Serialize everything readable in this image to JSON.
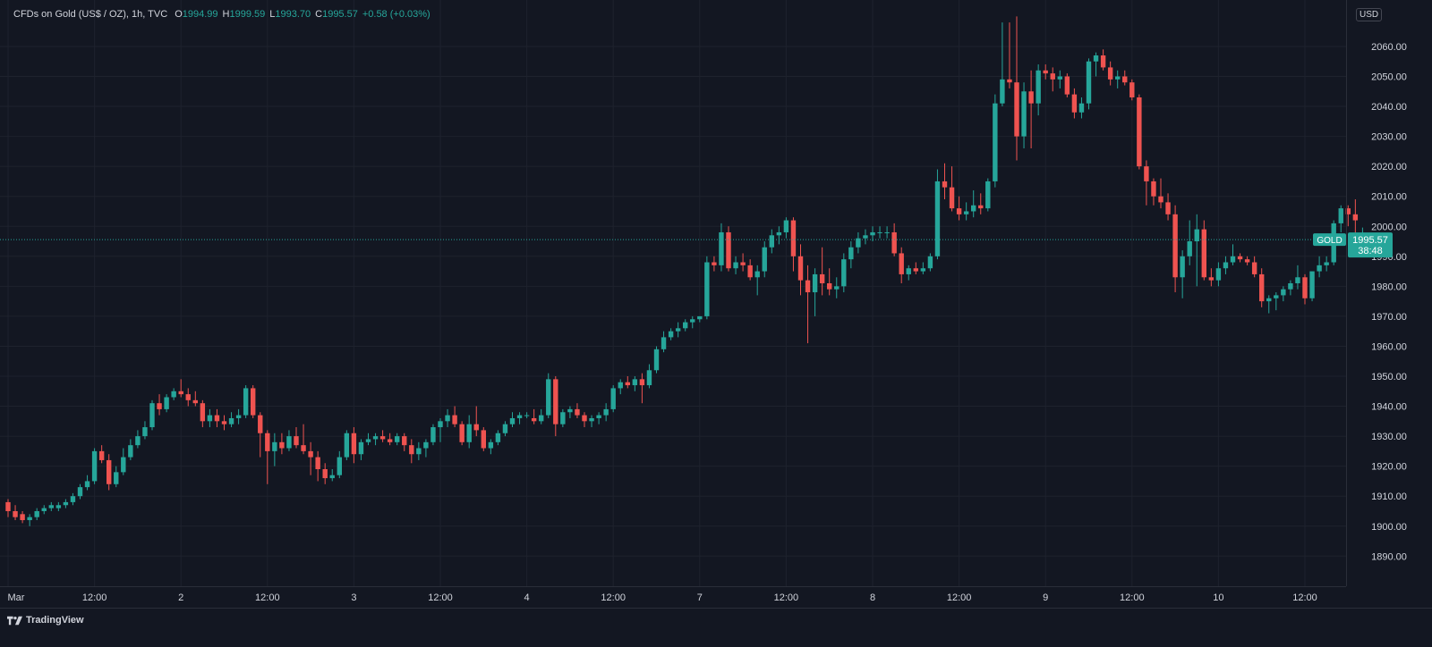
{
  "legend": {
    "symbol": "CFDs on Gold (US$ / OZ), 1h, TVC",
    "o_label": "O",
    "o_value": "1994.99",
    "h_label": "H",
    "h_value": "1999.59",
    "l_label": "L",
    "l_value": "1993.70",
    "c_label": "C",
    "c_value": "1995.57",
    "change": "+0.58 (+0.03%)"
  },
  "currency_button": "USD",
  "price_tag": {
    "ticker": "GOLD",
    "price": "1995.57",
    "countdown": "38:48"
  },
  "footer": {
    "brand": "TradingView",
    "logo_icon": "tradingview-logo-icon"
  },
  "colors": {
    "background": "#131722",
    "grid": "#1e222d",
    "up": "#26a69a",
    "down": "#ef5350",
    "text": "#d1d4dc",
    "axis_border": "#2a2e39"
  },
  "chart_data": {
    "type": "candlestick",
    "title": "CFDs on Gold (US$ / OZ), 1h, TVC",
    "ylabel": "USD",
    "y_axis_side": "right",
    "ylim": [
      1880,
      2070
    ],
    "y_ticks": [
      "1890.00",
      "1900.00",
      "1910.00",
      "1920.00",
      "1930.00",
      "1940.00",
      "1950.00",
      "1960.00",
      "1970.00",
      "1980.00",
      "1990.00",
      "2000.00",
      "2010.00",
      "2020.00",
      "2030.00",
      "2040.00",
      "2050.00",
      "2060.00"
    ],
    "x_ticks": [
      {
        "label": "Mar",
        "bar": 0
      },
      {
        "label": "12:00",
        "bar": 12
      },
      {
        "label": "2",
        "bar": 24
      },
      {
        "label": "12:00",
        "bar": 36
      },
      {
        "label": "3",
        "bar": 48
      },
      {
        "label": "12:00",
        "bar": 60
      },
      {
        "label": "4",
        "bar": 72
      },
      {
        "label": "12:00",
        "bar": 84
      },
      {
        "label": "7",
        "bar": 96
      },
      {
        "label": "12:00",
        "bar": 108
      },
      {
        "label": "8",
        "bar": 120
      },
      {
        "label": "12:00",
        "bar": 132
      },
      {
        "label": "9",
        "bar": 144
      },
      {
        "label": "12:00",
        "bar": 156
      },
      {
        "label": "10",
        "bar": 168
      },
      {
        "label": "12:00",
        "bar": 180
      }
    ],
    "current_price": 1995.57,
    "grid": true,
    "candles_ohlc": [
      [
        1908,
        1909,
        1903,
        1905
      ],
      [
        1905,
        1907,
        1902,
        1903
      ],
      [
        1904,
        1905,
        1901,
        1902
      ],
      [
        1902,
        1904,
        1900,
        1903
      ],
      [
        1903,
        1906,
        1902,
        1905
      ],
      [
        1905,
        1907,
        1904,
        1906
      ],
      [
        1906,
        1908,
        1905,
        1907
      ],
      [
        1906,
        1908,
        1905,
        1907
      ],
      [
        1907,
        1909,
        1906,
        1908
      ],
      [
        1908,
        1911,
        1907,
        1910
      ],
      [
        1910,
        1914,
        1909,
        1913
      ],
      [
        1913,
        1917,
        1912,
        1915
      ],
      [
        1915,
        1926,
        1914,
        1925
      ],
      [
        1925,
        1927,
        1921,
        1922
      ],
      [
        1922,
        1924,
        1912,
        1914
      ],
      [
        1914,
        1920,
        1913,
        1918
      ],
      [
        1918,
        1926,
        1917,
        1923
      ],
      [
        1923,
        1929,
        1922,
        1927
      ],
      [
        1927,
        1932,
        1926,
        1930
      ],
      [
        1930,
        1935,
        1929,
        1933
      ],
      [
        1933,
        1942,
        1932,
        1941
      ],
      [
        1941,
        1944,
        1937,
        1939
      ],
      [
        1939,
        1944,
        1938,
        1943
      ],
      [
        1943,
        1946,
        1942,
        1945
      ],
      [
        1945,
        1949,
        1943,
        1944
      ],
      [
        1944,
        1946,
        1940,
        1942
      ],
      [
        1942,
        1945,
        1940,
        1941
      ],
      [
        1941,
        1942,
        1933,
        1935
      ],
      [
        1935,
        1939,
        1933,
        1937
      ],
      [
        1937,
        1939,
        1933,
        1935
      ],
      [
        1935,
        1937,
        1932,
        1934
      ],
      [
        1934,
        1938,
        1933,
        1936
      ],
      [
        1936,
        1939,
        1934,
        1937
      ],
      [
        1937,
        1947,
        1936,
        1946
      ],
      [
        1946,
        1947,
        1936,
        1937
      ],
      [
        1937,
        1938,
        1923,
        1931
      ],
      [
        1931,
        1932,
        1914,
        1925
      ],
      [
        1925,
        1931,
        1920,
        1928
      ],
      [
        1928,
        1931,
        1924,
        1926
      ],
      [
        1926,
        1932,
        1925,
        1930
      ],
      [
        1930,
        1933,
        1926,
        1927
      ],
      [
        1927,
        1934,
        1924,
        1925
      ],
      [
        1925,
        1928,
        1917,
        1923
      ],
      [
        1923,
        1925,
        1915,
        1919
      ],
      [
        1919,
        1921,
        1914,
        1916
      ],
      [
        1916,
        1919,
        1915,
        1917
      ],
      [
        1917,
        1925,
        1916,
        1923
      ],
      [
        1923,
        1932,
        1922,
        1931
      ],
      [
        1931,
        1933,
        1921,
        1924
      ],
      [
        1924,
        1929,
        1922,
        1928
      ],
      [
        1928,
        1931,
        1927,
        1929
      ],
      [
        1929,
        1931,
        1927,
        1930
      ],
      [
        1930,
        1932,
        1928,
        1929
      ],
      [
        1929,
        1931,
        1927,
        1928
      ],
      [
        1928,
        1931,
        1927,
        1930
      ],
      [
        1930,
        1931,
        1925,
        1927
      ],
      [
        1927,
        1929,
        1921,
        1924
      ],
      [
        1924,
        1928,
        1922,
        1926
      ],
      [
        1926,
        1929,
        1923,
        1928
      ],
      [
        1928,
        1934,
        1927,
        1933
      ],
      [
        1933,
        1936,
        1928,
        1935
      ],
      [
        1935,
        1939,
        1933,
        1937
      ],
      [
        1937,
        1940,
        1933,
        1934
      ],
      [
        1934,
        1935,
        1927,
        1928
      ],
      [
        1928,
        1937,
        1926,
        1934
      ],
      [
        1934,
        1940,
        1930,
        1932
      ],
      [
        1932,
        1933,
        1925,
        1926
      ],
      [
        1926,
        1929,
        1924,
        1928
      ],
      [
        1928,
        1932,
        1927,
        1931
      ],
      [
        1931,
        1935,
        1930,
        1934
      ],
      [
        1934,
        1938,
        1933,
        1936
      ],
      [
        1936,
        1938,
        1934,
        1937
      ],
      [
        1937,
        1938,
        1936,
        1937
      ],
      [
        1936,
        1939,
        1934,
        1935
      ],
      [
        1935,
        1939,
        1934,
        1937
      ],
      [
        1937,
        1951,
        1936,
        1949
      ],
      [
        1949,
        1950,
        1930,
        1934
      ],
      [
        1934,
        1939,
        1933,
        1938
      ],
      [
        1938,
        1940,
        1936,
        1939
      ],
      [
        1939,
        1941,
        1936,
        1937
      ],
      [
        1937,
        1938,
        1933,
        1935
      ],
      [
        1935,
        1937,
        1933,
        1936
      ],
      [
        1936,
        1938,
        1934,
        1937
      ],
      [
        1937,
        1941,
        1935,
        1939
      ],
      [
        1939,
        1947,
        1938,
        1946
      ],
      [
        1946,
        1949,
        1944,
        1948
      ],
      [
        1948,
        1950,
        1946,
        1947
      ],
      [
        1947,
        1950,
        1945,
        1949
      ],
      [
        1949,
        1951,
        1941,
        1947
      ],
      [
        1947,
        1954,
        1946,
        1952
      ],
      [
        1952,
        1960,
        1951,
        1959
      ],
      [
        1959,
        1965,
        1958,
        1963
      ],
      [
        1963,
        1966,
        1962,
        1965
      ],
      [
        1965,
        1968,
        1963,
        1966
      ],
      [
        1966,
        1969,
        1965,
        1968
      ],
      [
        1968,
        1970,
        1966,
        1969
      ],
      [
        1969,
        1970,
        1968,
        1970
      ],
      [
        1970,
        1990,
        1969,
        1988
      ],
      [
        1988,
        1990,
        1985,
        1987
      ],
      [
        1987,
        2001,
        1985,
        1998
      ],
      [
        1998,
        2000,
        1985,
        1986
      ],
      [
        1986,
        1990,
        1984,
        1988
      ],
      [
        1988,
        1991,
        1985,
        1987
      ],
      [
        1987,
        1989,
        1982,
        1983
      ],
      [
        1983,
        1987,
        1977,
        1985
      ],
      [
        1985,
        1995,
        1983,
        1993
      ],
      [
        1993,
        1999,
        1991,
        1997
      ],
      [
        1997,
        2000,
        1994,
        1998
      ],
      [
        1998,
        2003,
        1996,
        2002
      ],
      [
        2002,
        2003,
        1985,
        1990
      ],
      [
        1990,
        1994,
        1977,
        1982
      ],
      [
        1982,
        1987,
        1961,
        1978
      ],
      [
        1978,
        1986,
        1970,
        1984
      ],
      [
        1984,
        1993,
        1977,
        1981
      ],
      [
        1981,
        1986,
        1977,
        1979
      ],
      [
        1979,
        1983,
        1976,
        1980
      ],
      [
        1980,
        1991,
        1978,
        1989
      ],
      [
        1989,
        1995,
        1986,
        1993
      ],
      [
        1993,
        1998,
        1991,
        1996
      ],
      [
        1996,
        1999,
        1994,
        1997
      ],
      [
        1997,
        2000,
        1995,
        1998
      ],
      [
        1998,
        2000,
        1996,
        1998
      ],
      [
        1998,
        2000,
        1996,
        1998
      ],
      [
        1998,
        2001,
        1990,
        1991
      ],
      [
        1991,
        1993,
        1981,
        1984
      ],
      [
        1984,
        1987,
        1982,
        1986
      ],
      [
        1986,
        1988,
        1984,
        1985
      ],
      [
        1985,
        1988,
        1984,
        1986
      ],
      [
        1986,
        1991,
        1985,
        1990
      ],
      [
        1990,
        2019,
        1989,
        2015
      ],
      [
        2015,
        2021,
        2009,
        2013
      ],
      [
        2013,
        2020,
        2005,
        2006
      ],
      [
        2006,
        2010,
        2002,
        2004
      ],
      [
        2004,
        2008,
        2002,
        2005
      ],
      [
        2005,
        2012,
        2003,
        2007
      ],
      [
        2007,
        2011,
        2004,
        2006
      ],
      [
        2006,
        2016,
        2005,
        2015
      ],
      [
        2015,
        2044,
        2013,
        2041
      ],
      [
        2041,
        2068,
        2040,
        2049
      ],
      [
        2049,
        2068,
        2046,
        2048
      ],
      [
        2048,
        2070,
        2022,
        2030
      ],
      [
        2030,
        2048,
        2026,
        2045
      ],
      [
        2045,
        2052,
        2026,
        2041
      ],
      [
        2041,
        2054,
        2037,
        2052
      ],
      [
        2052,
        2054,
        2049,
        2051
      ],
      [
        2051,
        2053,
        2045,
        2049
      ],
      [
        2049,
        2052,
        2046,
        2050
      ],
      [
        2050,
        2051,
        2043,
        2044
      ],
      [
        2044,
        2046,
        2036,
        2038
      ],
      [
        2038,
        2043,
        2036,
        2041
      ],
      [
        2041,
        2056,
        2039,
        2055
      ],
      [
        2055,
        2058,
        2050,
        2057
      ],
      [
        2057,
        2059,
        2052,
        2053
      ],
      [
        2053,
        2055,
        2047,
        2049
      ],
      [
        2049,
        2052,
        2046,
        2050
      ],
      [
        2050,
        2052,
        2047,
        2048
      ],
      [
        2048,
        2049,
        2042,
        2043
      ],
      [
        2043,
        2044,
        2019,
        2020
      ],
      [
        2020,
        2022,
        2007,
        2015
      ],
      [
        2015,
        2016,
        2007,
        2010
      ],
      [
        2010,
        2016,
        2006,
        2008
      ],
      [
        2008,
        2011,
        2002,
        2004
      ],
      [
        2004,
        2007,
        1978,
        1983
      ],
      [
        1983,
        1992,
        1976,
        1990
      ],
      [
        1990,
        2002,
        1987,
        1995
      ],
      [
        1995,
        2004,
        1980,
        1999
      ],
      [
        1999,
        2002,
        1982,
        1983
      ],
      [
        1983,
        1986,
        1980,
        1982
      ],
      [
        1982,
        1988,
        1980,
        1986
      ],
      [
        1986,
        1990,
        1984,
        1988
      ],
      [
        1988,
        1994,
        1987,
        1990
      ],
      [
        1990,
        1991,
        1988,
        1989
      ],
      [
        1989,
        1990,
        1987,
        1988
      ],
      [
        1988,
        1990,
        1983,
        1984
      ],
      [
        1984,
        1986,
        1973,
        1975
      ],
      [
        1975,
        1977,
        1971,
        1976
      ],
      [
        1976,
        1978,
        1972,
        1977
      ],
      [
        1977,
        1980,
        1975,
        1979
      ],
      [
        1979,
        1982,
        1977,
        1981
      ],
      [
        1981,
        1987,
        1979,
        1983
      ],
      [
        1983,
        1984,
        1974,
        1976
      ],
      [
        1976,
        1984,
        1975,
        1985
      ],
      [
        1985,
        1990,
        1983,
        1987
      ],
      [
        1987,
        1990,
        1985,
        1988
      ],
      [
        1988,
        2002,
        1987,
        2001
      ],
      [
        2001,
        2007,
        1998,
        2006
      ],
      [
        2006,
        2007,
        2000,
        2004
      ],
      [
        2004,
        2009,
        1995,
        2002
      ],
      [
        1995,
        1999.59,
        1993.7,
        1995.57
      ]
    ]
  }
}
